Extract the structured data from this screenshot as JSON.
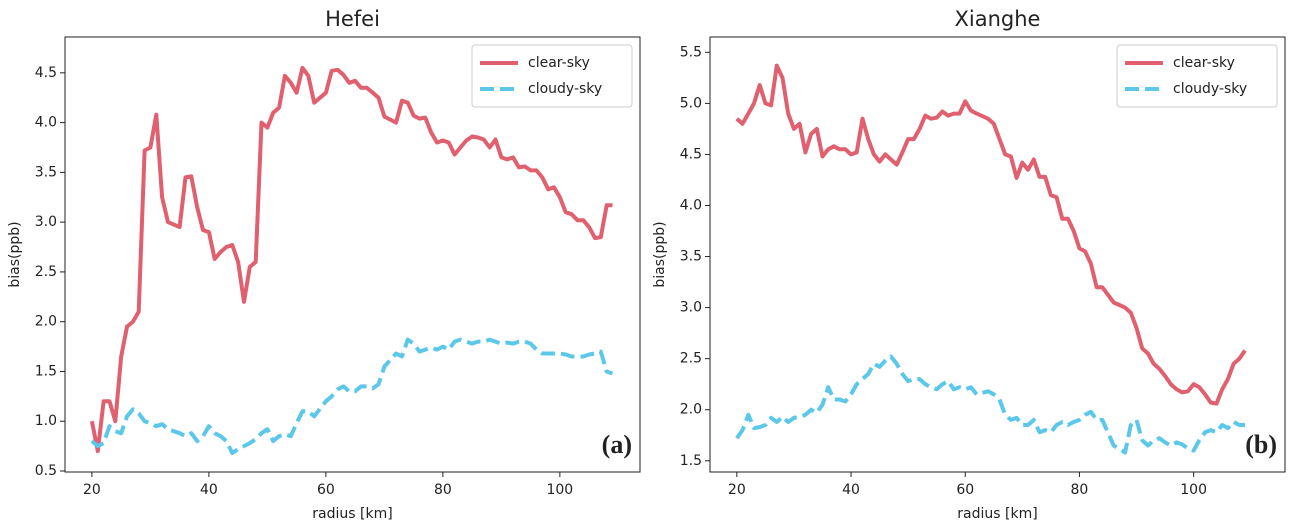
{
  "chart_data": [
    {
      "type": "line",
      "title": "Hefei",
      "xlabel": "radius [km]",
      "ylabel": "bias(ppb)",
      "annotation": "(a)",
      "legend": "upper right",
      "grid": false,
      "xlim": [
        15.4,
        113.7
      ],
      "ylim": [
        0.49,
        4.86
      ],
      "xticks": [
        20,
        40,
        60,
        80,
        100
      ],
      "yticks": [
        0.5,
        {
          "value": 1.0,
          "label": "1.0"
        },
        1.5,
        {
          "value": 2.0,
          "label": "2.0"
        },
        2.5,
        {
          "value": 3.0,
          "label": "3.0"
        },
        3.5,
        {
          "value": 4.0,
          "label": "4.0"
        },
        4.5
      ],
      "x": [
        20,
        21,
        22,
        23,
        24,
        25,
        26,
        27,
        28,
        29,
        30,
        31,
        32,
        33,
        35,
        36,
        37,
        38,
        39,
        40,
        41,
        42,
        43,
        44,
        45,
        46,
        47,
        48,
        49,
        50,
        51,
        52,
        53,
        54,
        55,
        56,
        57,
        58,
        60,
        61,
        62,
        63,
        64,
        65,
        66,
        67,
        68,
        69,
        70,
        72,
        73,
        74,
        75,
        76,
        77,
        78,
        79,
        80,
        81,
        82,
        83,
        84,
        85,
        86,
        87,
        88,
        89,
        90,
        91,
        92,
        93,
        94,
        95,
        96,
        97,
        98,
        99,
        100,
        101,
        102,
        103,
        104,
        105,
        106,
        107,
        108,
        109
      ],
      "series": [
        {
          "name": "clear-sky",
          "color": "#e0606f",
          "linestyle": "solid",
          "values": [
            1.0,
            0.7,
            1.2,
            1.2,
            1.0,
            1.65,
            1.95,
            2.0,
            2.1,
            3.72,
            3.75,
            4.08,
            3.25,
            3.0,
            2.95,
            3.45,
            3.46,
            3.15,
            2.92,
            2.9,
            2.63,
            2.7,
            2.75,
            2.77,
            2.6,
            2.2,
            2.55,
            2.6,
            4.0,
            3.95,
            4.1,
            4.15,
            4.47,
            4.4,
            4.3,
            4.55,
            4.47,
            4.2,
            4.3,
            4.52,
            4.53,
            4.48,
            4.4,
            4.42,
            4.35,
            4.35,
            4.3,
            4.25,
            4.06,
            4.0,
            4.22,
            4.2,
            4.07,
            4.04,
            4.05,
            3.9,
            3.8,
            3.82,
            3.8,
            3.68,
            3.75,
            3.82,
            3.86,
            3.85,
            3.83,
            3.75,
            3.83,
            3.65,
            3.63,
            3.65,
            3.55,
            3.56,
            3.52,
            3.52,
            3.45,
            3.33,
            3.35,
            3.25,
            3.1,
            3.08,
            3.02,
            3.02,
            2.95,
            2.84,
            2.85,
            3.17,
            3.17
          ]
        },
        {
          "name": "cloudy-sky",
          "color": "#5bc8ea",
          "linestyle": "dashed",
          "values": [
            0.8,
            0.75,
            0.78,
            0.95,
            0.9,
            0.88,
            1.05,
            1.12,
            1.08,
            1.0,
            0.98,
            0.95,
            0.97,
            0.92,
            0.88,
            0.85,
            0.88,
            0.8,
            0.85,
            0.95,
            0.88,
            0.85,
            0.8,
            0.68,
            0.72,
            0.75,
            0.78,
            0.82,
            0.88,
            0.92,
            0.8,
            0.85,
            0.87,
            0.85,
            0.98,
            1.1,
            1.1,
            1.05,
            1.2,
            1.25,
            1.32,
            1.35,
            1.3,
            1.3,
            1.35,
            1.35,
            1.33,
            1.37,
            1.55,
            1.68,
            1.65,
            1.82,
            1.78,
            1.7,
            1.72,
            1.74,
            1.72,
            1.75,
            1.72,
            1.8,
            1.82,
            1.8,
            1.78,
            1.8,
            1.8,
            1.82,
            1.8,
            1.78,
            1.79,
            1.78,
            1.8,
            1.8,
            1.78,
            1.72,
            1.68,
            1.68,
            1.68,
            1.68,
            1.67,
            1.65,
            1.65,
            1.65,
            1.67,
            1.68,
            1.7,
            1.5,
            1.48
          ]
        }
      ]
    },
    {
      "type": "line",
      "title": "Xianghe",
      "xlabel": "radius [km]",
      "ylabel": "bias(ppb)",
      "annotation": "(b)",
      "legend": "upper right",
      "grid": false,
      "xlim": [
        15.3,
        116
      ],
      "ylim": [
        1.39,
        5.65
      ],
      "xticks": [
        20,
        40,
        60,
        80,
        100
      ],
      "yticks": [
        1.5,
        {
          "value": 2.0,
          "label": "2.0"
        },
        2.5,
        {
          "value": 3.0,
          "label": "3.0"
        },
        3.5,
        {
          "value": 4.0,
          "label": "4.0"
        },
        4.5,
        {
          "value": 5.0,
          "label": "5.0"
        },
        5.5
      ],
      "x": [
        20,
        21,
        22,
        23,
        24,
        25,
        26,
        27,
        28,
        29,
        30,
        31,
        32,
        33,
        34,
        35,
        36,
        37,
        38,
        39,
        40,
        41,
        42,
        43,
        44,
        45,
        46,
        47,
        48,
        49,
        50,
        51,
        52,
        53,
        54,
        55,
        56,
        57,
        58,
        59,
        60,
        61,
        62,
        64,
        65,
        66,
        67,
        68,
        69,
        70,
        71,
        72,
        73,
        74,
        75,
        76,
        77,
        78,
        79,
        80,
        81,
        82,
        83,
        84,
        86,
        88,
        89,
        90,
        91,
        92,
        93,
        94,
        95,
        96,
        97,
        98,
        99,
        100,
        101,
        102,
        103,
        104,
        105,
        106,
        107,
        108,
        109
      ],
      "series": [
        {
          "name": "clear-sky",
          "color": "#e0606f",
          "linestyle": "solid",
          "values": [
            4.85,
            4.8,
            4.9,
            5.0,
            5.18,
            5.0,
            4.98,
            5.37,
            5.25,
            4.9,
            4.75,
            4.8,
            4.52,
            4.7,
            4.75,
            4.48,
            4.55,
            4.58,
            4.55,
            4.55,
            4.5,
            4.52,
            4.85,
            4.65,
            4.5,
            4.43,
            4.5,
            4.45,
            4.4,
            4.52,
            4.65,
            4.65,
            4.75,
            4.88,
            4.85,
            4.86,
            4.92,
            4.88,
            4.9,
            4.9,
            5.02,
            4.93,
            4.9,
            4.85,
            4.8,
            4.65,
            4.5,
            4.48,
            4.27,
            4.42,
            4.35,
            4.45,
            4.28,
            4.28,
            4.1,
            4.08,
            3.87,
            3.87,
            3.75,
            3.58,
            3.55,
            3.43,
            3.2,
            3.2,
            3.05,
            3.0,
            2.95,
            2.8,
            2.6,
            2.55,
            2.45,
            2.4,
            2.33,
            2.25,
            2.2,
            2.17,
            2.18,
            2.25,
            2.22,
            2.15,
            2.07,
            2.06,
            2.2,
            2.3,
            2.45,
            2.5,
            2.58
          ]
        },
        {
          "name": "cloudy-sky",
          "color": "#5bc8ea",
          "linestyle": "dashed",
          "values": [
            1.72,
            1.8,
            1.95,
            1.82,
            1.83,
            1.85,
            1.92,
            1.88,
            1.93,
            1.88,
            1.92,
            1.93,
            1.95,
            2.0,
            1.97,
            2.05,
            2.22,
            2.1,
            2.1,
            2.08,
            2.15,
            2.25,
            2.3,
            2.35,
            2.45,
            2.42,
            2.48,
            2.52,
            2.45,
            2.35,
            2.28,
            2.3,
            2.3,
            2.25,
            2.22,
            2.2,
            2.25,
            2.28,
            2.2,
            2.22,
            2.2,
            2.22,
            2.15,
            2.18,
            2.15,
            2.1,
            1.95,
            1.9,
            1.92,
            1.85,
            1.85,
            1.9,
            1.78,
            1.8,
            1.78,
            1.85,
            1.88,
            1.85,
            1.88,
            1.9,
            1.95,
            1.98,
            1.9,
            1.9,
            1.65,
            1.58,
            1.85,
            1.9,
            1.7,
            1.65,
            1.7,
            1.72,
            1.68,
            1.65,
            1.68,
            1.66,
            1.62,
            1.6,
            1.7,
            1.78,
            1.8,
            1.78,
            1.85,
            1.82,
            1.88,
            1.85,
            1.85
          ]
        }
      ]
    }
  ]
}
